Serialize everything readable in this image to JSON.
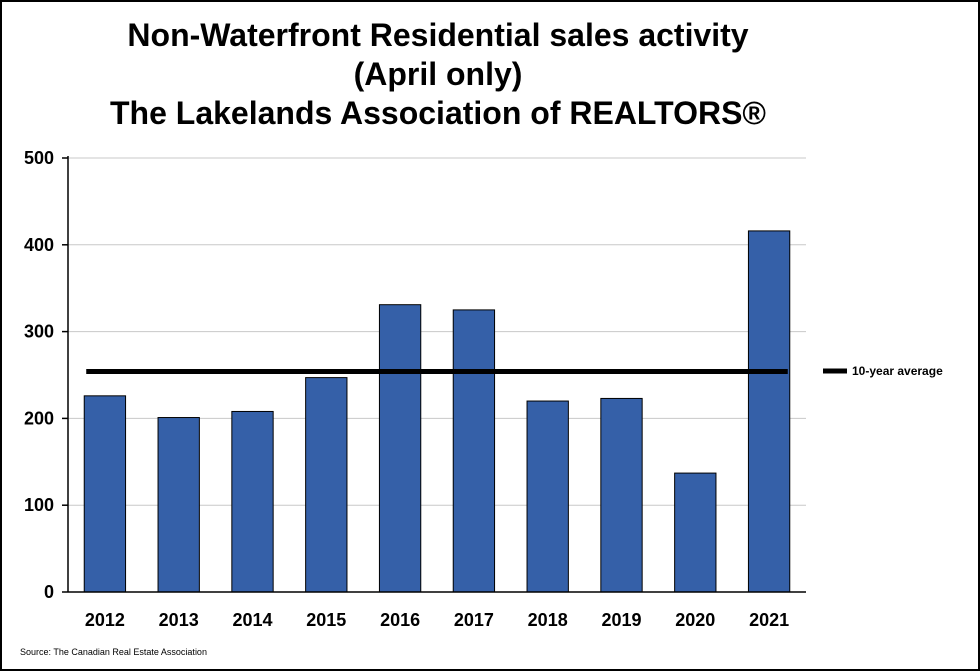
{
  "title_lines": [
    "Non-Waterfront Residential sales activity",
    "(April only)",
    "The Lakelands Association of REALTORS®"
  ],
  "source": "Source: The Canadian Real Estate Association",
  "colors": {
    "bar": "#3560a8",
    "average_line": "#000000",
    "grid": "#c8c8c8"
  },
  "chart_data": {
    "type": "bar",
    "categories": [
      "2012",
      "2013",
      "2014",
      "2015",
      "2016",
      "2017",
      "2018",
      "2019",
      "2020",
      "2021"
    ],
    "values": [
      226,
      201,
      208,
      247,
      331,
      325,
      220,
      223,
      137,
      416
    ],
    "ylim": [
      0,
      500
    ],
    "yticks": [
      "0",
      "100",
      "200",
      "300",
      "400",
      "500"
    ],
    "grid": true,
    "reference_line": {
      "label": "10-year average",
      "value": 254
    },
    "legend": {
      "position": "right",
      "entries": [
        "10-year average"
      ]
    }
  }
}
